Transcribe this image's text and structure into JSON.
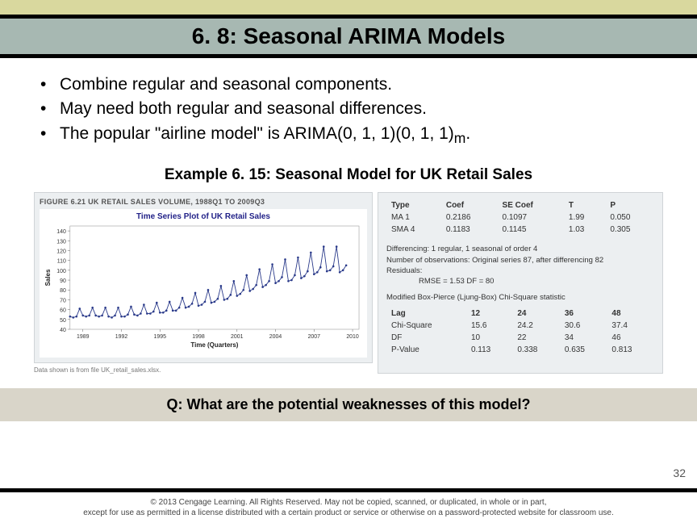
{
  "title": "6. 8: Seasonal ARIMA Models",
  "bullets": [
    "Combine regular and seasonal components.",
    "May need both regular and seasonal differences.",
    "The popular \"airline model\" is ARIMA(0, 1, 1)(0, 1, 1)"
  ],
  "bullet3_subscript": "m",
  "example_title": "Example 6. 15: Seasonal Model for UK Retail Sales",
  "figure_caption": "FIGURE 6.21   UK RETAIL SALES VOLUME, 1988Q1 TO 2009Q3",
  "chart": {
    "title": "Time Series Plot of UK Retail Sales",
    "xlabel": "Time (Quarters)",
    "ylabel": "Sales",
    "xticks": [
      1989,
      1992,
      1995,
      1998,
      2001,
      2004,
      2007,
      2010
    ],
    "yticks": [
      40,
      50,
      60,
      70,
      80,
      90,
      100,
      110,
      120,
      130,
      140
    ],
    "ylim": [
      40,
      145
    ],
    "xlim": [
      1988,
      2010.5
    ],
    "line_color": "#2a3a8a",
    "marker_color": "#2a3a8a",
    "grid_color": "#d8dde1",
    "bg": "#ffffff",
    "series": [
      [
        1988.0,
        53
      ],
      [
        1988.25,
        52
      ],
      [
        1988.5,
        53
      ],
      [
        1988.75,
        61
      ],
      [
        1989.0,
        54
      ],
      [
        1989.25,
        53
      ],
      [
        1989.5,
        54
      ],
      [
        1989.75,
        62
      ],
      [
        1990.0,
        54
      ],
      [
        1990.25,
        53
      ],
      [
        1990.5,
        54
      ],
      [
        1990.75,
        62
      ],
      [
        1991.0,
        53
      ],
      [
        1991.25,
        52
      ],
      [
        1991.5,
        54
      ],
      [
        1991.75,
        62
      ],
      [
        1992.0,
        53
      ],
      [
        1992.25,
        53
      ],
      [
        1992.5,
        55
      ],
      [
        1992.75,
        63
      ],
      [
        1993.0,
        55
      ],
      [
        1993.25,
        54
      ],
      [
        1993.5,
        56
      ],
      [
        1993.75,
        65
      ],
      [
        1994.0,
        56
      ],
      [
        1994.25,
        56
      ],
      [
        1994.5,
        58
      ],
      [
        1994.75,
        67
      ],
      [
        1995.0,
        57
      ],
      [
        1995.25,
        57
      ],
      [
        1995.5,
        59
      ],
      [
        1995.75,
        68
      ],
      [
        1996.0,
        59
      ],
      [
        1996.25,
        59
      ],
      [
        1996.5,
        62
      ],
      [
        1996.75,
        72
      ],
      [
        1997.0,
        62
      ],
      [
        1997.25,
        63
      ],
      [
        1997.5,
        66
      ],
      [
        1997.75,
        77
      ],
      [
        1998.0,
        64
      ],
      [
        1998.25,
        65
      ],
      [
        1998.5,
        68
      ],
      [
        1998.75,
        80
      ],
      [
        1999.0,
        67
      ],
      [
        1999.25,
        68
      ],
      [
        1999.5,
        71
      ],
      [
        1999.75,
        84
      ],
      [
        2000.0,
        70
      ],
      [
        2000.25,
        71
      ],
      [
        2000.5,
        75
      ],
      [
        2000.75,
        89
      ],
      [
        2001.0,
        74
      ],
      [
        2001.25,
        76
      ],
      [
        2001.5,
        80
      ],
      [
        2001.75,
        95
      ],
      [
        2002.0,
        79
      ],
      [
        2002.25,
        81
      ],
      [
        2002.5,
        85
      ],
      [
        2002.75,
        101
      ],
      [
        2003.0,
        83
      ],
      [
        2003.25,
        85
      ],
      [
        2003.5,
        89
      ],
      [
        2003.75,
        106
      ],
      [
        2004.0,
        87
      ],
      [
        2004.25,
        89
      ],
      [
        2004.5,
        93
      ],
      [
        2004.75,
        111
      ],
      [
        2005.0,
        89
      ],
      [
        2005.25,
        90
      ],
      [
        2005.5,
        95
      ],
      [
        2005.75,
        113
      ],
      [
        2006.0,
        92
      ],
      [
        2006.25,
        94
      ],
      [
        2006.5,
        99
      ],
      [
        2006.75,
        118
      ],
      [
        2007.0,
        96
      ],
      [
        2007.25,
        98
      ],
      [
        2007.5,
        103
      ],
      [
        2007.75,
        124
      ],
      [
        2008.0,
        99
      ],
      [
        2008.25,
        100
      ],
      [
        2008.5,
        104
      ],
      [
        2008.75,
        124
      ],
      [
        2009.0,
        98
      ],
      [
        2009.25,
        100
      ],
      [
        2009.5,
        105
      ]
    ]
  },
  "footnote": "Data shown is from file UK_retail_sales.xlsx.",
  "stats": {
    "headers": [
      "Type",
      "Coef",
      "SE Coef",
      "T",
      "P"
    ],
    "rows": [
      [
        "MA 1",
        "0.2186",
        "0.1097",
        "1.99",
        "0.050"
      ],
      [
        "SMA 4",
        "0.1183",
        "0.1145",
        "1.03",
        "0.305"
      ]
    ],
    "diff_note1": "Differencing: 1 regular, 1 seasonal of order 4",
    "diff_note2": "Number of observations: Original series 87, after differencing 82",
    "residuals_label": "Residuals:",
    "rmse_line": "RMSE = 1.53 DF = 80",
    "lb_title": "Modified Box-Pierce (Ljung-Box) Chi-Square statistic",
    "lb_headers": [
      "Lag",
      "12",
      "24",
      "36",
      "48"
    ],
    "lb_rows": [
      [
        "Chi-Square",
        "15.6",
        "24.2",
        "30.6",
        "37.4"
      ],
      [
        "DF",
        "10",
        "22",
        "34",
        "46"
      ],
      [
        "P-Value",
        "0.113",
        "0.338",
        "0.635",
        "0.813"
      ]
    ]
  },
  "question": "Q: What are the potential weaknesses of this model?",
  "pagenum": "32",
  "copyright1": "© 2013 Cengage Learning. All Rights Reserved. May not be copied, scanned, or duplicated, in whole or in part,",
  "copyright2": "except for use as permitted in a license distributed with a certain product or service or otherwise on a password-protected website for classroom use."
}
